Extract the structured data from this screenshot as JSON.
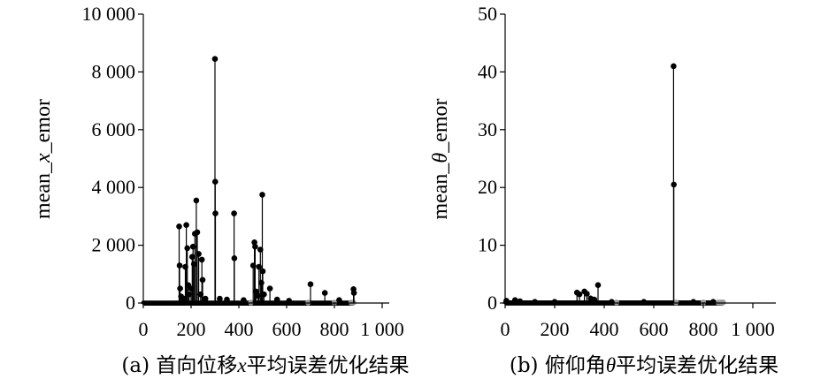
{
  "chart_data": [
    {
      "type": "scatter",
      "style": "stem",
      "caption": "(a) 首向位移x平均误差优化结果",
      "caption_parts": [
        "(a) 首向位移",
        "x",
        "平均误差优化结果"
      ],
      "ylabel": "mean_x_emor",
      "ylabel_parts": [
        "mean_",
        "x",
        "_emor"
      ],
      "xlabel": "",
      "xlim": [
        0,
        1000
      ],
      "ylim": [
        0,
        10000
      ],
      "x_ticks": [
        0,
        200,
        400,
        600,
        800,
        1000
      ],
      "x_tick_labels": [
        "0",
        "200",
        "400",
        "600",
        "800",
        "1 000"
      ],
      "y_ticks": [
        0,
        2000,
        4000,
        6000,
        8000,
        10000
      ],
      "y_tick_labels": [
        "0",
        "2 000",
        "4 000",
        "6 000",
        "8 000",
        "10 000"
      ],
      "grid": false,
      "colors": {
        "point": "#000000",
        "stem": "#000000",
        "faded_point": "#9a9a9a"
      },
      "baseline": {
        "x_range": [
          0,
          880
        ],
        "value": 15
      },
      "faded_x": [
        450,
        690,
        800,
        870,
        875,
        880
      ],
      "stems": [
        {
          "x": 150,
          "y": 2650
        },
        {
          "x": 152,
          "y": 1300
        },
        {
          "x": 154,
          "y": 500
        },
        {
          "x": 158,
          "y": 230
        },
        {
          "x": 170,
          "y": 150
        },
        {
          "x": 176,
          "y": 1250
        },
        {
          "x": 180,
          "y": 2700
        },
        {
          "x": 184,
          "y": 1900
        },
        {
          "x": 188,
          "y": 620
        },
        {
          "x": 192,
          "y": 300
        },
        {
          "x": 200,
          "y": 500
        },
        {
          "x": 205,
          "y": 1600
        },
        {
          "x": 208,
          "y": 1950
        },
        {
          "x": 212,
          "y": 1350
        },
        {
          "x": 216,
          "y": 2400
        },
        {
          "x": 222,
          "y": 3550
        },
        {
          "x": 226,
          "y": 2450
        },
        {
          "x": 232,
          "y": 1700
        },
        {
          "x": 240,
          "y": 300
        },
        {
          "x": 245,
          "y": 1500
        },
        {
          "x": 248,
          "y": 800
        },
        {
          "x": 260,
          "y": 150
        },
        {
          "x": 300,
          "y": 8450
        },
        {
          "x": 301,
          "y": 4200
        },
        {
          "x": 302,
          "y": 3100
        },
        {
          "x": 320,
          "y": 150
        },
        {
          "x": 350,
          "y": 120
        },
        {
          "x": 380,
          "y": 3100
        },
        {
          "x": 381,
          "y": 1550
        },
        {
          "x": 420,
          "y": 100
        },
        {
          "x": 460,
          "y": 1300
        },
        {
          "x": 465,
          "y": 2100
        },
        {
          "x": 468,
          "y": 1950
        },
        {
          "x": 472,
          "y": 400
        },
        {
          "x": 480,
          "y": 250
        },
        {
          "x": 484,
          "y": 1250
        },
        {
          "x": 490,
          "y": 1850
        },
        {
          "x": 494,
          "y": 700
        },
        {
          "x": 498,
          "y": 3750
        },
        {
          "x": 500,
          "y": 1100
        },
        {
          "x": 505,
          "y": 300
        },
        {
          "x": 530,
          "y": 500
        },
        {
          "x": 560,
          "y": 120
        },
        {
          "x": 610,
          "y": 80
        },
        {
          "x": 700,
          "y": 650
        },
        {
          "x": 760,
          "y": 350
        },
        {
          "x": 820,
          "y": 100
        },
        {
          "x": 880,
          "y": 480
        },
        {
          "x": 882,
          "y": 350
        }
      ]
    },
    {
      "type": "scatter",
      "style": "stem",
      "caption": "(b) 俯仰角θ平均误差优化结果",
      "caption_parts": [
        "(b) 俯仰角",
        "θ",
        "平均误差优化结果"
      ],
      "ylabel": "mean_θ_emor",
      "ylabel_parts": [
        "mean_",
        "θ",
        "_emor"
      ],
      "xlabel": "",
      "xlim": [
        0,
        1000
      ],
      "ylim": [
        0,
        50
      ],
      "x_ticks": [
        0,
        200,
        400,
        600,
        800,
        1000
      ],
      "x_tick_labels": [
        "0",
        "200",
        "400",
        "600",
        "800",
        "1 000"
      ],
      "y_ticks": [
        0,
        10,
        20,
        30,
        40,
        50
      ],
      "y_tick_labels": [
        "0",
        "10",
        "20",
        "30",
        "40",
        "50"
      ],
      "grid": false,
      "colors": {
        "point": "#000000",
        "stem": "#000000",
        "faded_point": "#9a9a9a"
      },
      "baseline": {
        "x_range": [
          0,
          880
        ],
        "value": 0.1
      },
      "faded_x": [
        450,
        690,
        800,
        860,
        870,
        875,
        880
      ],
      "stems": [
        {
          "x": 5,
          "y": 0.4
        },
        {
          "x": 40,
          "y": 0.5
        },
        {
          "x": 60,
          "y": 0.3
        },
        {
          "x": 120,
          "y": 0.2
        },
        {
          "x": 200,
          "y": 0.2
        },
        {
          "x": 290,
          "y": 1.8
        },
        {
          "x": 300,
          "y": 1.5
        },
        {
          "x": 320,
          "y": 2.0
        },
        {
          "x": 330,
          "y": 1.6
        },
        {
          "x": 345,
          "y": 0.8
        },
        {
          "x": 360,
          "y": 0.6
        },
        {
          "x": 375,
          "y": 3.1
        },
        {
          "x": 430,
          "y": 0.2
        },
        {
          "x": 560,
          "y": 0.2
        },
        {
          "x": 680,
          "y": 41
        },
        {
          "x": 681,
          "y": 20.5
        },
        {
          "x": 760,
          "y": 0.2
        },
        {
          "x": 840,
          "y": 0.2
        }
      ]
    }
  ]
}
